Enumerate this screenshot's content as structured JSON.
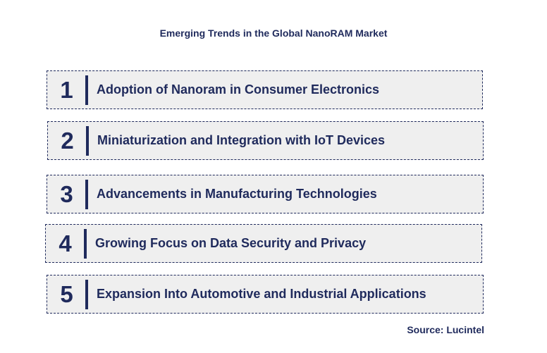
{
  "title": "Emerging Trends in the Global NanoRAM Market",
  "trends": [
    {
      "number": "1",
      "label": "Adoption of Nanoram in Consumer Electronics"
    },
    {
      "number": "2",
      "label": "Miniaturization and Integration with IoT Devices"
    },
    {
      "number": "3",
      "label": "Advancements in Manufacturing Technologies"
    },
    {
      "number": "4",
      "label": "Growing Focus on Data Security and Privacy"
    },
    {
      "number": "5",
      "label": "Expansion Into Automotive and Industrial Applications"
    }
  ],
  "source": "Source: Lucintel",
  "colors": {
    "text": "#1f2a5c",
    "box_fill": "#efefef",
    "box_border": "#1f2a5c"
  }
}
